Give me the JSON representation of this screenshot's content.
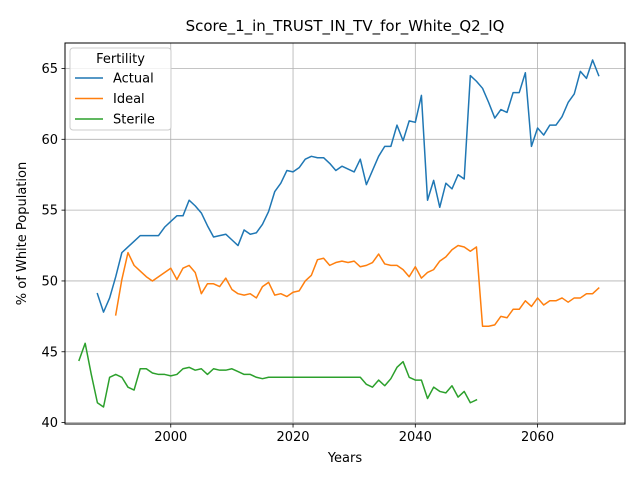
{
  "chart_data": {
    "type": "line",
    "title": "Score_1_in_TRUST_IN_TV_for_White_Q2_IQ",
    "xlabel": "Years",
    "ylabel": "% of White Population",
    "xlim": [
      1982.7,
      2074.3
    ],
    "ylim": [
      39.9,
      66.8
    ],
    "xticks": [
      2000,
      2020,
      2040,
      2060
    ],
    "yticks": [
      40,
      45,
      50,
      55,
      60,
      65
    ],
    "grid": true,
    "legend": {
      "title": "Fertility",
      "placement": "top-left"
    },
    "series": [
      {
        "name": "Actual",
        "color": "#1f77b4",
        "x": [
          1988,
          1989,
          1990,
          1991,
          1992,
          1993,
          1994,
          1995,
          1996,
          1997,
          1998,
          1999,
          2000,
          2001,
          2002,
          2003,
          2004,
          2005,
          2006,
          2007,
          2008,
          2009,
          2010,
          2011,
          2012,
          2013,
          2014,
          2015,
          2016,
          2017,
          2018,
          2019,
          2020,
          2021,
          2022,
          2023,
          2024,
          2025,
          2026,
          2027,
          2028,
          2029,
          2030,
          2031,
          2032,
          2033,
          2034,
          2035,
          2036,
          2037,
          2038,
          2039,
          2040,
          2041,
          2042,
          2043,
          2044,
          2045,
          2046,
          2047,
          2048,
          2049,
          2050,
          2051,
          2052,
          2053,
          2054,
          2055,
          2056,
          2057,
          2058,
          2059,
          2060,
          2061,
          2062,
          2063,
          2064,
          2065,
          2066,
          2067,
          2068,
          2069,
          2070
        ],
        "values": [
          49.1,
          47.8,
          48.8,
          50.3,
          52.0,
          52.4,
          52.8,
          53.2,
          53.2,
          53.2,
          53.2,
          53.8,
          54.2,
          54.6,
          54.6,
          55.7,
          55.3,
          54.8,
          53.9,
          53.1,
          53.2,
          53.3,
          52.9,
          52.5,
          53.6,
          53.3,
          53.4,
          54.0,
          54.9,
          56.3,
          56.9,
          57.8,
          57.7,
          58.0,
          58.6,
          58.8,
          58.7,
          58.7,
          58.3,
          57.8,
          58.1,
          57.9,
          57.7,
          58.6,
          56.8,
          57.8,
          58.8,
          59.5,
          59.5,
          61.0,
          59.9,
          61.3,
          61.2,
          63.1,
          55.7,
          57.1,
          55.2,
          56.9,
          56.5,
          57.5,
          57.2,
          64.5,
          64.1,
          63.6,
          62.6,
          61.5,
          62.1,
          61.9,
          63.3,
          63.3,
          64.7,
          59.5,
          60.8,
          60.3,
          61.0,
          61.0,
          61.6,
          62.6,
          63.2,
          64.8,
          64.3,
          65.6,
          64.5
        ]
      },
      {
        "name": "Ideal",
        "color": "#ff7f0e",
        "x": [
          1991,
          1992,
          1993,
          1994,
          1995,
          1996,
          1997,
          1998,
          1999,
          2000,
          2001,
          2002,
          2003,
          2004,
          2005,
          2006,
          2007,
          2008,
          2009,
          2010,
          2011,
          2012,
          2013,
          2014,
          2015,
          2016,
          2017,
          2018,
          2019,
          2020,
          2021,
          2022,
          2023,
          2024,
          2025,
          2026,
          2027,
          2028,
          2029,
          2030,
          2031,
          2032,
          2033,
          2034,
          2035,
          2036,
          2037,
          2038,
          2039,
          2040,
          2041,
          2042,
          2043,
          2044,
          2045,
          2046,
          2047,
          2048,
          2049,
          2050,
          2051,
          2052,
          2053,
          2054,
          2055,
          2056,
          2057,
          2058,
          2059,
          2060,
          2061,
          2062,
          2063,
          2064,
          2065,
          2066,
          2067,
          2068,
          2069,
          2070
        ],
        "values": [
          47.6,
          50.1,
          52.0,
          51.1,
          50.7,
          50.3,
          50.0,
          50.3,
          50.6,
          50.9,
          50.1,
          50.9,
          51.1,
          50.6,
          49.1,
          49.8,
          49.8,
          49.6,
          50.2,
          49.4,
          49.1,
          49.0,
          49.1,
          48.8,
          49.6,
          49.9,
          49.0,
          49.1,
          48.9,
          49.2,
          49.3,
          50.0,
          50.4,
          51.5,
          51.6,
          51.1,
          51.3,
          51.4,
          51.3,
          51.4,
          51.0,
          51.1,
          51.3,
          51.9,
          51.2,
          51.1,
          51.1,
          50.8,
          50.3,
          51.0,
          50.2,
          50.6,
          50.8,
          51.4,
          51.7,
          52.2,
          52.5,
          52.4,
          52.1,
          52.4,
          46.8,
          46.8,
          46.9,
          47.5,
          47.4,
          48.0,
          48.0,
          48.6,
          48.2,
          48.8,
          48.3,
          48.6,
          48.6,
          48.8,
          48.5,
          48.8,
          48.8,
          49.1,
          49.1,
          49.5
        ]
      },
      {
        "name": "Sterile",
        "color": "#2ca02c",
        "x": [
          1985,
          1986,
          1987,
          1988,
          1989,
          1990,
          1991,
          1992,
          1993,
          1994,
          1995,
          1996,
          1997,
          1998,
          1999,
          2000,
          2001,
          2002,
          2003,
          2004,
          2005,
          2006,
          2007,
          2008,
          2009,
          2010,
          2011,
          2012,
          2013,
          2014,
          2015,
          2016,
          2017,
          2018,
          2019,
          2020,
          2021,
          2022,
          2023,
          2024,
          2025,
          2026,
          2027,
          2028,
          2029,
          2030,
          2031,
          2032,
          2033,
          2034,
          2035,
          2036,
          2037,
          2038,
          2039,
          2040,
          2041,
          2042,
          2043,
          2044,
          2045,
          2046,
          2047,
          2048,
          2049,
          2050
        ],
        "values": [
          44.4,
          45.6,
          43.4,
          41.4,
          41.1,
          43.2,
          43.4,
          43.2,
          42.5,
          42.3,
          43.8,
          43.8,
          43.5,
          43.4,
          43.4,
          43.3,
          43.4,
          43.8,
          43.9,
          43.7,
          43.8,
          43.4,
          43.8,
          43.7,
          43.7,
          43.8,
          43.6,
          43.4,
          43.4,
          43.2,
          43.1,
          43.2,
          43.2,
          43.2,
          43.2,
          43.2,
          43.2,
          43.2,
          43.2,
          43.2,
          43.2,
          43.2,
          43.2,
          43.2,
          43.2,
          43.2,
          43.2,
          42.7,
          42.5,
          43.0,
          42.6,
          43.1,
          43.9,
          44.3,
          43.2,
          43.0,
          43.0,
          41.7,
          42.5,
          42.2,
          42.1,
          42.6,
          41.8,
          42.2,
          41.4,
          41.6
        ]
      }
    ]
  }
}
